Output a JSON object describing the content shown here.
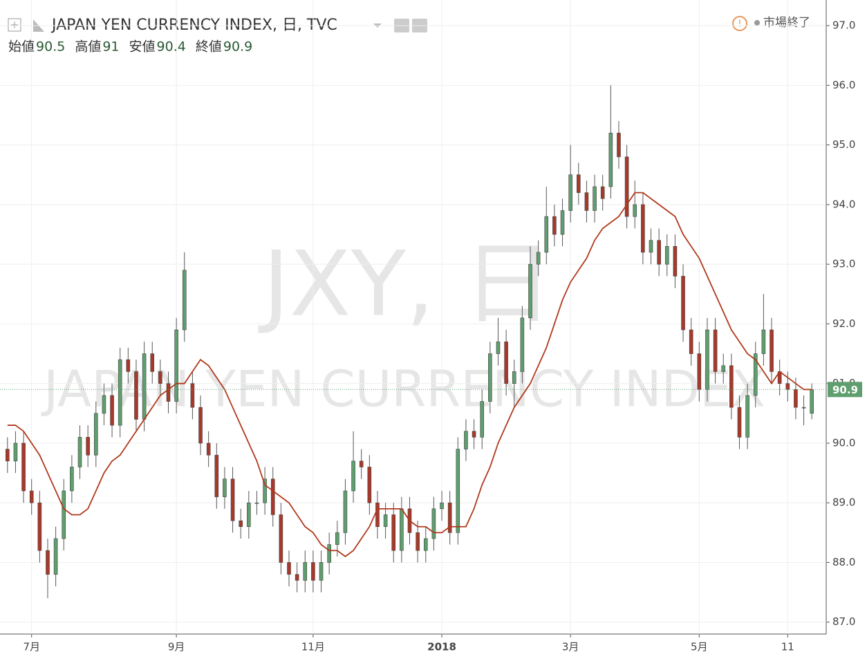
{
  "chart_data": {
    "type": "candlestick",
    "title": "JAPAN YEN CURRENCY INDEX, 日, TVC",
    "status": "市場終了",
    "watermark": [
      "JXY, 日",
      "JAPAN YEN CURRENCY INDEX"
    ],
    "legend": [
      {
        "name": "始値",
        "value": 90.5
      },
      {
        "name": "高値",
        "value": 91.0
      },
      {
        "name": "安値",
        "value": 90.4
      },
      {
        "name": "終値",
        "value": 90.9
      }
    ],
    "last_price": {
      "value": 90.9,
      "label": "90.9"
    },
    "up_color": "#5f9e6e",
    "down_color": "#a8392a",
    "ylim": [
      86.8,
      97.43
    ],
    "yticks": [
      {
        "value": 87,
        "label": "87.0"
      },
      {
        "value": 88,
        "label": "88.0"
      },
      {
        "value": 89,
        "label": "89.0"
      },
      {
        "value": 90,
        "label": "90.0"
      },
      {
        "value": 91,
        "label": "91.0"
      },
      {
        "value": 92,
        "label": "92.0"
      },
      {
        "value": 93,
        "label": "93.0"
      },
      {
        "value": 94,
        "label": "94.0"
      },
      {
        "value": 95,
        "label": "95.0"
      },
      {
        "value": 96,
        "label": "96.0"
      },
      {
        "value": 97,
        "label": "97.0"
      }
    ],
    "grid": true,
    "categories": [
      null,
      null,
      null,
      "7月",
      null,
      null,
      null,
      null,
      null,
      null,
      null,
      null,
      null,
      null,
      null,
      null,
      null,
      null,
      null,
      null,
      null,
      "9月",
      null,
      null,
      null,
      null,
      null,
      null,
      null,
      null,
      null,
      null,
      null,
      null,
      null,
      null,
      null,
      null,
      "11月",
      null,
      null,
      null,
      null,
      null,
      null,
      null,
      null,
      null,
      null,
      null,
      null,
      null,
      null,
      null,
      "2018",
      null,
      null,
      null,
      null,
      null,
      null,
      null,
      null,
      null,
      null,
      null,
      null,
      null,
      null,
      null,
      "3月",
      null,
      null,
      null,
      null,
      null,
      null,
      null,
      null,
      null,
      null,
      null,
      null,
      null,
      null,
      null,
      "5月",
      null,
      null,
      null,
      null,
      null,
      null,
      null,
      null,
      null,
      null,
      "11",
      null,
      null,
      null
    ],
    "open": [
      89.9,
      89.7,
      90.0,
      89.2,
      89.0,
      88.2,
      87.8,
      88.4,
      89.2,
      89.6,
      90.1,
      89.8,
      90.5,
      90.8,
      90.3,
      91.4,
      91.2,
      90.4,
      91.5,
      91.2,
      91.0,
      90.7,
      91.9,
      91.0,
      90.6,
      90.0,
      89.8,
      89.1,
      89.4,
      88.7,
      88.6,
      89.0,
      89.0,
      89.4,
      88.8,
      88.0,
      87.8,
      87.7,
      88.0,
      87.7,
      88.0,
      88.3,
      88.5,
      89.2,
      89.7,
      89.6,
      89.0,
      88.6,
      88.8,
      88.2,
      88.9,
      88.5,
      88.2,
      88.4,
      88.9,
      89.0,
      88.5,
      89.9,
      90.2,
      90.1,
      90.7,
      91.5,
      91.7,
      91.0,
      91.2,
      92.1,
      93.0,
      93.2,
      93.8,
      93.5,
      93.9,
      94.5,
      94.2,
      93.9,
      94.3,
      94.3,
      95.2,
      94.8,
      93.8,
      94.0,
      93.2,
      93.4,
      93.0,
      93.3,
      92.8,
      91.9,
      91.5,
      90.9,
      91.9,
      91.2,
      91.3,
      90.6,
      90.1,
      90.8,
      91.5,
      91.9,
      91.2,
      91.0,
      90.9,
      90.6,
      90.5
    ],
    "high": [
      90.1,
      90.2,
      90.2,
      89.4,
      89.2,
      88.4,
      88.6,
      89.4,
      89.8,
      90.3,
      90.3,
      90.7,
      91.0,
      91.0,
      91.6,
      91.6,
      91.4,
      91.7,
      91.7,
      91.4,
      91.2,
      92.1,
      93.2,
      91.2,
      90.8,
      90.2,
      90.0,
      89.6,
      89.6,
      88.9,
      89.2,
      89.2,
      89.6,
      89.6,
      89.0,
      88.2,
      88.0,
      88.2,
      88.2,
      88.2,
      88.5,
      88.7,
      89.4,
      90.2,
      89.9,
      89.8,
      89.2,
      89.0,
      89.0,
      89.1,
      89.1,
      88.7,
      88.6,
      89.1,
      89.2,
      89.2,
      90.1,
      90.4,
      90.4,
      90.9,
      91.7,
      92.1,
      91.9,
      91.4,
      92.3,
      93.3,
      93.4,
      94.3,
      94.0,
      94.1,
      95.0,
      94.7,
      94.4,
      94.5,
      94.5,
      96.0,
      95.4,
      95.0,
      94.4,
      94.2,
      93.6,
      93.6,
      93.5,
      93.5,
      93.0,
      92.1,
      91.7,
      92.1,
      92.1,
      91.5,
      91.5,
      90.8,
      91.0,
      91.7,
      92.5,
      92.1,
      91.4,
      91.2,
      91.1,
      90.8,
      91.0
    ],
    "low": [
      89.5,
      89.5,
      89.0,
      88.8,
      88.0,
      87.4,
      87.6,
      88.2,
      89.0,
      89.4,
      89.6,
      89.6,
      90.3,
      90.1,
      90.1,
      91.0,
      90.2,
      90.2,
      91.0,
      90.8,
      90.5,
      90.5,
      91.7,
      90.4,
      89.8,
      89.6,
      88.9,
      88.9,
      88.5,
      88.4,
      88.4,
      88.8,
      88.8,
      88.6,
      87.8,
      87.6,
      87.5,
      87.5,
      87.5,
      87.5,
      87.8,
      88.1,
      88.3,
      89.0,
      89.4,
      88.8,
      88.4,
      88.4,
      88.0,
      88.0,
      88.3,
      88.0,
      88.0,
      88.2,
      88.7,
      88.3,
      88.3,
      89.7,
      89.9,
      89.9,
      90.5,
      91.3,
      90.8,
      90.6,
      91.0,
      91.9,
      92.8,
      93.0,
      93.3,
      93.3,
      93.7,
      94.0,
      93.7,
      93.7,
      93.9,
      94.1,
      94.6,
      93.6,
      93.6,
      93.0,
      93.0,
      92.8,
      92.8,
      92.6,
      91.7,
      91.3,
      90.7,
      90.7,
      91.0,
      91.0,
      90.4,
      89.9,
      89.9,
      90.6,
      91.3,
      91.0,
      90.8,
      90.7,
      90.4,
      90.3,
      90.4
    ],
    "close": [
      89.7,
      90.0,
      89.2,
      89.0,
      88.2,
      87.8,
      88.4,
      89.2,
      89.6,
      90.1,
      89.8,
      90.5,
      90.8,
      90.3,
      91.4,
      91.2,
      90.4,
      91.5,
      91.2,
      91.0,
      90.7,
      91.9,
      92.9,
      90.6,
      90.0,
      89.8,
      89.1,
      89.4,
      88.7,
      88.6,
      89.0,
      89.0,
      89.4,
      88.8,
      88.0,
      87.8,
      87.7,
      88.0,
      87.7,
      88.0,
      88.3,
      88.5,
      89.2,
      89.7,
      89.6,
      89.0,
      88.6,
      88.8,
      88.2,
      88.9,
      88.5,
      88.2,
      88.4,
      88.9,
      89.0,
      88.5,
      89.9,
      90.2,
      90.1,
      90.7,
      91.5,
      91.7,
      91.0,
      91.2,
      92.1,
      93.0,
      93.2,
      93.8,
      93.5,
      93.9,
      94.5,
      94.2,
      93.9,
      94.3,
      94.1,
      95.2,
      94.8,
      93.8,
      94.0,
      93.2,
      93.4,
      93.0,
      93.3,
      92.8,
      91.9,
      91.5,
      90.9,
      91.9,
      91.2,
      91.3,
      90.6,
      90.1,
      90.8,
      91.5,
      91.9,
      91.2,
      91.0,
      90.9,
      90.6,
      90.6,
      90.9
    ],
    "ma": {
      "color": "#b0381c",
      "values": [
        90.3,
        90.3,
        90.2,
        90.0,
        89.8,
        89.5,
        89.2,
        88.9,
        88.8,
        88.8,
        88.9,
        89.2,
        89.5,
        89.7,
        89.8,
        90.0,
        90.2,
        90.4,
        90.6,
        90.8,
        90.9,
        91.0,
        91.0,
        91.2,
        91.4,
        91.3,
        91.1,
        90.9,
        90.6,
        90.3,
        90.0,
        89.7,
        89.3,
        89.2,
        89.1,
        89.0,
        88.8,
        88.6,
        88.5,
        88.3,
        88.2,
        88.2,
        88.1,
        88.2,
        88.4,
        88.6,
        88.9,
        88.9,
        88.9,
        88.9,
        88.7,
        88.6,
        88.6,
        88.5,
        88.5,
        88.6,
        88.6,
        88.6,
        88.9,
        89.3,
        89.6,
        90.0,
        90.3,
        90.6,
        90.8,
        91.0,
        91.3,
        91.6,
        92.0,
        92.4,
        92.7,
        92.9,
        93.1,
        93.4,
        93.6,
        93.7,
        93.8,
        94.0,
        94.2,
        94.2,
        94.1,
        94.0,
        93.9,
        93.8,
        93.5,
        93.3,
        93.1,
        92.8,
        92.5,
        92.2,
        91.9,
        91.7,
        91.5,
        91.4,
        91.2,
        91.0,
        91.2,
        91.1,
        91.0,
        90.9,
        90.9
      ]
    }
  }
}
